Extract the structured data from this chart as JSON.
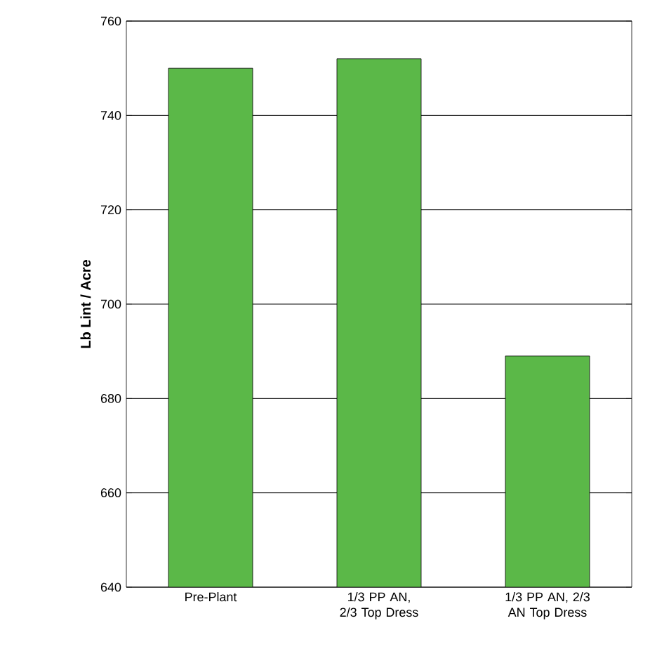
{
  "chart_data": {
    "type": "bar",
    "ylabel": "**Lb Lint / Acre**",
    "categories": [
      "Pre-Plant",
      "1/3 PP AN, 2/3 Top Dress",
      "1/3 PP AN, 2/3 AN Top Dress"
    ],
    "values": [
      750,
      752,
      689
    ],
    "color": "#5bb848",
    "ylim": [
      640,
      760
    ],
    "yticks": [
      640,
      660,
      680,
      700,
      720,
      740,
      760
    ],
    "grid": "y"
  }
}
